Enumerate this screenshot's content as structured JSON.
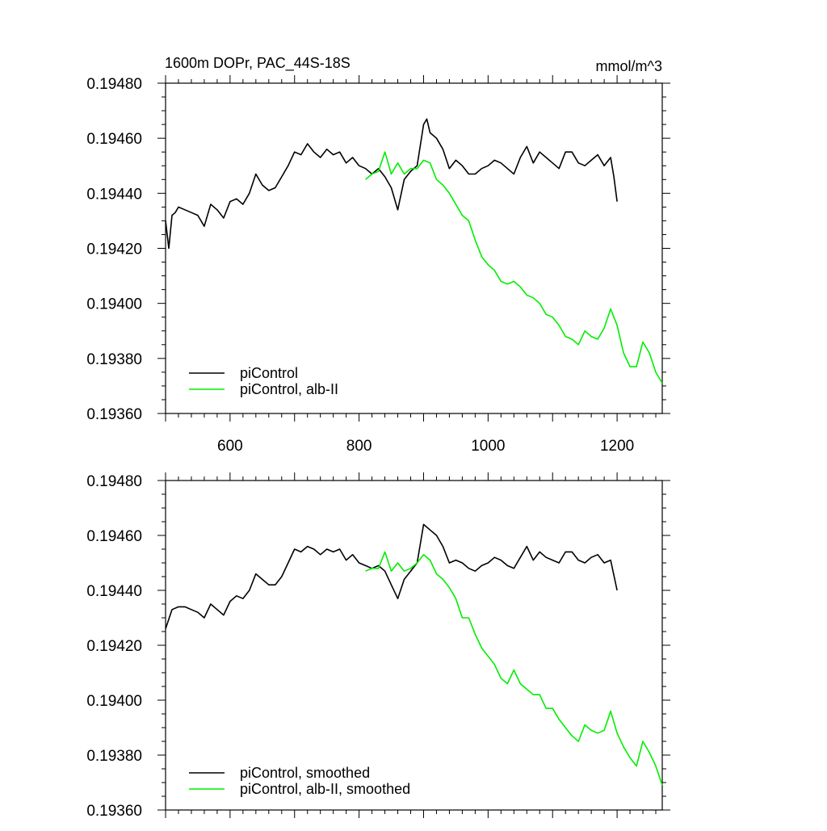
{
  "chart_data": [
    {
      "type": "line",
      "title": "1600m DOPr, PAC_44S-18S",
      "units": "mmol/m^3",
      "xlim": [
        500,
        1270
      ],
      "ylim": [
        0.1936,
        0.1948
      ],
      "x_ticks": [
        600,
        800,
        1000,
        1200
      ],
      "x_tick_labels": [
        "600",
        "800",
        "1000",
        "1200"
      ],
      "y_ticks": [
        0.1936,
        0.1938,
        0.194,
        0.1942,
        0.1944,
        0.1946,
        0.1948
      ],
      "y_tick_labels": [
        "0.19360",
        "0.19380",
        "0.19400",
        "0.19420",
        "0.19440",
        "0.19460",
        "0.19480"
      ],
      "legend_position": "bottom-left",
      "series": [
        {
          "name": "piControl",
          "color": "#000000",
          "x": [
            500,
            505,
            510,
            515,
            520,
            530,
            540,
            550,
            560,
            570,
            580,
            590,
            600,
            610,
            620,
            630,
            640,
            650,
            660,
            670,
            680,
            690,
            700,
            710,
            720,
            730,
            740,
            750,
            760,
            770,
            780,
            790,
            800,
            810,
            820,
            830,
            840,
            850,
            860,
            870,
            880,
            890,
            900,
            905,
            910,
            920,
            930,
            940,
            950,
            960,
            970,
            980,
            990,
            1000,
            1010,
            1020,
            1030,
            1040,
            1050,
            1060,
            1070,
            1080,
            1090,
            1100,
            1110,
            1120,
            1130,
            1140,
            1150,
            1160,
            1170,
            1180,
            1190,
            1195,
            1200
          ],
          "y": [
            0.1943,
            0.1942,
            0.19432,
            0.19433,
            0.19435,
            0.19434,
            0.19433,
            0.19432,
            0.19428,
            0.19436,
            0.19434,
            0.19431,
            0.19437,
            0.19438,
            0.19436,
            0.1944,
            0.19447,
            0.19443,
            0.19441,
            0.19442,
            0.19446,
            0.1945,
            0.19455,
            0.19454,
            0.19458,
            0.19455,
            0.19453,
            0.19456,
            0.19454,
            0.19455,
            0.19451,
            0.19453,
            0.1945,
            0.19449,
            0.19447,
            0.19449,
            0.19446,
            0.19442,
            0.19434,
            0.19445,
            0.19448,
            0.1945,
            0.19465,
            0.19467,
            0.19462,
            0.1946,
            0.19456,
            0.19449,
            0.19452,
            0.1945,
            0.19447,
            0.19447,
            0.19449,
            0.1945,
            0.19452,
            0.19451,
            0.19449,
            0.19447,
            0.19453,
            0.19457,
            0.19451,
            0.19455,
            0.19453,
            0.19451,
            0.19449,
            0.19455,
            0.19455,
            0.19451,
            0.1945,
            0.19452,
            0.19454,
            0.1945,
            0.19453,
            0.19446,
            0.19437
          ]
        },
        {
          "name": "piControl, alb-II",
          "color": "#00ee00",
          "x": [
            810,
            820,
            830,
            840,
            850,
            860,
            870,
            880,
            890,
            900,
            910,
            920,
            930,
            940,
            950,
            960,
            970,
            980,
            990,
            1000,
            1010,
            1020,
            1030,
            1040,
            1050,
            1060,
            1070,
            1080,
            1090,
            1100,
            1110,
            1120,
            1130,
            1140,
            1150,
            1160,
            1170,
            1180,
            1190,
            1200,
            1210,
            1220,
            1230,
            1240,
            1250,
            1260,
            1270
          ],
          "y": [
            0.19445,
            0.19447,
            0.19448,
            0.19455,
            0.19447,
            0.19451,
            0.19447,
            0.19449,
            0.19449,
            0.19452,
            0.19451,
            0.19445,
            0.19443,
            0.1944,
            0.19436,
            0.19432,
            0.1943,
            0.19423,
            0.19417,
            0.19414,
            0.19412,
            0.19408,
            0.19407,
            0.19408,
            0.19406,
            0.19403,
            0.19402,
            0.194,
            0.19396,
            0.19395,
            0.19392,
            0.19388,
            0.19387,
            0.19385,
            0.1939,
            0.19388,
            0.19387,
            0.19391,
            0.19398,
            0.19392,
            0.19382,
            0.19377,
            0.19377,
            0.19386,
            0.19382,
            0.19375,
            0.19371
          ]
        }
      ]
    },
    {
      "type": "line",
      "xlim": [
        500,
        1270
      ],
      "ylim": [
        0.1936,
        0.1948
      ],
      "x_ticks": [
        600,
        800,
        1000,
        1200
      ],
      "y_ticks": [
        0.1936,
        0.1938,
        0.194,
        0.1942,
        0.1944,
        0.1946,
        0.1948
      ],
      "y_tick_labels": [
        "0.19360",
        "0.19380",
        "0.19400",
        "0.19420",
        "0.19440",
        "0.19460",
        "0.19480"
      ],
      "legend_position": "bottom-left",
      "series": [
        {
          "name": "piControl, smoothed",
          "color": "#000000",
          "x": [
            500,
            510,
            520,
            530,
            540,
            550,
            560,
            570,
            580,
            590,
            600,
            610,
            620,
            630,
            640,
            650,
            660,
            670,
            680,
            690,
            700,
            710,
            720,
            730,
            740,
            750,
            760,
            770,
            780,
            790,
            800,
            810,
            820,
            830,
            840,
            850,
            860,
            870,
            880,
            890,
            900,
            910,
            920,
            930,
            940,
            950,
            960,
            970,
            980,
            990,
            1000,
            1010,
            1020,
            1030,
            1040,
            1050,
            1060,
            1070,
            1080,
            1090,
            1100,
            1110,
            1120,
            1130,
            1140,
            1150,
            1160,
            1170,
            1180,
            1190,
            1200
          ],
          "y": [
            0.19426,
            0.19433,
            0.19434,
            0.19434,
            0.19433,
            0.19432,
            0.1943,
            0.19435,
            0.19433,
            0.19431,
            0.19436,
            0.19438,
            0.19437,
            0.1944,
            0.19446,
            0.19444,
            0.19442,
            0.19442,
            0.19445,
            0.1945,
            0.19455,
            0.19454,
            0.19456,
            0.19455,
            0.19453,
            0.19455,
            0.19454,
            0.19455,
            0.19451,
            0.19453,
            0.1945,
            0.19449,
            0.19448,
            0.19449,
            0.19447,
            0.19442,
            0.19437,
            0.19444,
            0.19447,
            0.1945,
            0.19464,
            0.19462,
            0.1946,
            0.19456,
            0.1945,
            0.19451,
            0.1945,
            0.19448,
            0.19447,
            0.19449,
            0.1945,
            0.19452,
            0.19451,
            0.19449,
            0.19448,
            0.19452,
            0.19456,
            0.19451,
            0.19454,
            0.19452,
            0.19451,
            0.1945,
            0.19454,
            0.19454,
            0.19451,
            0.1945,
            0.19452,
            0.19453,
            0.1945,
            0.19451,
            0.1944
          ]
        },
        {
          "name": "piControl, alb-II, smoothed",
          "color": "#00ee00",
          "x": [
            810,
            820,
            830,
            840,
            850,
            860,
            870,
            880,
            890,
            900,
            910,
            920,
            930,
            940,
            950,
            960,
            970,
            980,
            990,
            1000,
            1010,
            1020,
            1030,
            1040,
            1050,
            1060,
            1070,
            1080,
            1090,
            1100,
            1110,
            1120,
            1130,
            1140,
            1150,
            1160,
            1170,
            1180,
            1190,
            1200,
            1210,
            1220,
            1230,
            1240,
            1250,
            1260,
            1270
          ],
          "y": [
            0.19447,
            0.19448,
            0.19448,
            0.19454,
            0.19447,
            0.1945,
            0.19447,
            0.19448,
            0.1945,
            0.19453,
            0.19451,
            0.19446,
            0.19444,
            0.19441,
            0.19437,
            0.1943,
            0.1943,
            0.19424,
            0.19419,
            0.19416,
            0.19413,
            0.19408,
            0.19406,
            0.19411,
            0.19406,
            0.19404,
            0.19402,
            0.19402,
            0.19397,
            0.19397,
            0.19393,
            0.1939,
            0.19387,
            0.19385,
            0.19391,
            0.19389,
            0.19388,
            0.19389,
            0.19396,
            0.19388,
            0.19383,
            0.19379,
            0.19376,
            0.19385,
            0.19381,
            0.19376,
            0.19369
          ]
        }
      ]
    }
  ]
}
